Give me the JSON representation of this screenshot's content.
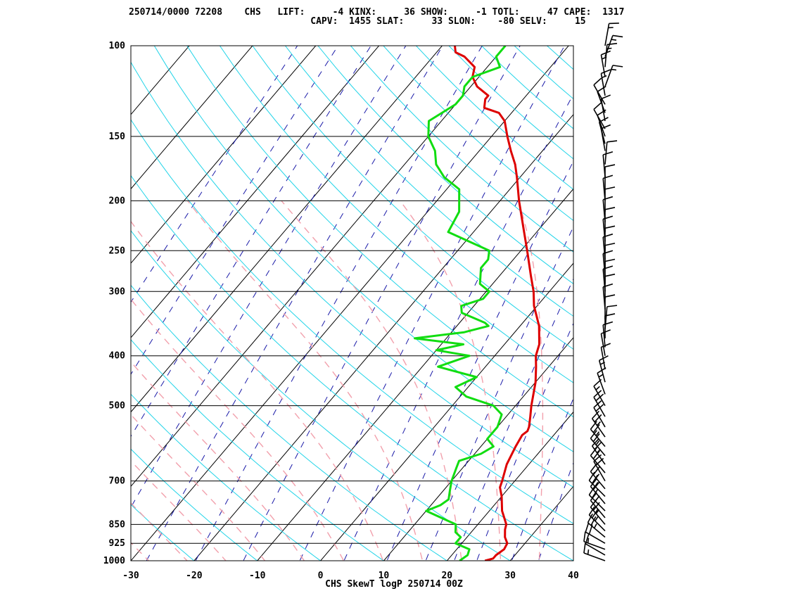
{
  "header": {
    "line1": "250714/0000 72208    CHS   LIFT:     -4 KINX:     36 SHOW:     -1 TOTL:     47 CAPE:  1317",
    "line2": "                                 CAPV:  1455 SLAT:     33 SLON:    -80 SELV:     15"
  },
  "chart_data": {
    "type": "line",
    "title": "CHS SkewT logP 250714 00Z",
    "xlabel": "",
    "ylabel": "",
    "xlim": [
      -30,
      40
    ],
    "ylim": [
      1000,
      100
    ],
    "y_scale": "log",
    "x_ticks": [
      -30,
      -20,
      -10,
      0,
      10,
      20,
      30,
      40
    ],
    "pressure_levels": [
      100,
      150,
      200,
      250,
      300,
      400,
      500,
      700,
      850,
      925,
      1000
    ],
    "series": [
      {
        "name": "",
        "color": "#dd0000",
        "points": [
          [
            1000,
            26
          ],
          [
            990,
            27
          ],
          [
            975,
            27
          ],
          [
            950,
            27.5
          ],
          [
            925,
            27.2
          ],
          [
            900,
            26
          ],
          [
            870,
            25
          ],
          [
            850,
            24.5
          ],
          [
            800,
            22
          ],
          [
            750,
            20
          ],
          [
            720,
            18.5
          ],
          [
            700,
            18
          ],
          [
            650,
            16.5
          ],
          [
            600,
            15.5
          ],
          [
            570,
            15
          ],
          [
            560,
            15.3
          ],
          [
            550,
            15
          ],
          [
            525,
            13.8
          ],
          [
            500,
            12.5
          ],
          [
            450,
            10
          ],
          [
            420,
            8
          ],
          [
            400,
            6.5
          ],
          [
            380,
            5.5
          ],
          [
            350,
            3
          ],
          [
            320,
            -0.5
          ],
          [
            300,
            -2.5
          ],
          [
            280,
            -5
          ],
          [
            250,
            -9
          ],
          [
            230,
            -12
          ],
          [
            200,
            -17
          ],
          [
            180,
            -20.5
          ],
          [
            170,
            -22.5
          ],
          [
            160,
            -25
          ],
          [
            150,
            -27.5
          ],
          [
            140,
            -30
          ],
          [
            135,
            -32
          ],
          [
            132,
            -35
          ],
          [
            127,
            -36
          ],
          [
            125,
            -36
          ],
          [
            120,
            -39
          ],
          [
            115,
            -41
          ],
          [
            110,
            -42
          ],
          [
            105,
            -45
          ],
          [
            103,
            -47
          ],
          [
            100,
            -48
          ]
        ]
      },
      {
        "name": "",
        "color": "#11dd11",
        "points": [
          [
            1000,
            22
          ],
          [
            975,
            22.5
          ],
          [
            950,
            22
          ],
          [
            925,
            19
          ],
          [
            900,
            19
          ],
          [
            880,
            17.5
          ],
          [
            850,
            16.5
          ],
          [
            800,
            10
          ],
          [
            780,
            11.5
          ],
          [
            760,
            12
          ],
          [
            730,
            11
          ],
          [
            700,
            10
          ],
          [
            660,
            9
          ],
          [
            640,
            8.5
          ],
          [
            620,
            11
          ],
          [
            600,
            12
          ],
          [
            580,
            10
          ],
          [
            550,
            10
          ],
          [
            520,
            9
          ],
          [
            500,
            6.5
          ],
          [
            480,
            1
          ],
          [
            460,
            -2
          ],
          [
            440,
            0
          ],
          [
            420,
            -7.5
          ],
          [
            400,
            -4
          ],
          [
            390,
            -10
          ],
          [
            380,
            -6.5
          ],
          [
            370,
            -15
          ],
          [
            360,
            -8
          ],
          [
            350,
            -5
          ],
          [
            345,
            -6
          ],
          [
            330,
            -11
          ],
          [
            320,
            -12
          ],
          [
            310,
            -9.5
          ],
          [
            300,
            -9.5
          ],
          [
            290,
            -12
          ],
          [
            270,
            -14
          ],
          [
            260,
            -14
          ],
          [
            250,
            -15
          ],
          [
            230,
            -24
          ],
          [
            210,
            -25
          ],
          [
            190,
            -28
          ],
          [
            180,
            -32
          ],
          [
            170,
            -35
          ],
          [
            160,
            -37
          ],
          [
            150,
            -40
          ],
          [
            140,
            -42
          ],
          [
            130,
            -40
          ],
          [
            125,
            -40
          ],
          [
            120,
            -41
          ],
          [
            115,
            -41
          ],
          [
            110,
            -38
          ],
          [
            105,
            -40
          ],
          [
            100,
            -40
          ]
        ]
      }
    ],
    "wind_barbs": [
      [
        1000,
        290,
        15
      ],
      [
        975,
        300,
        10
      ],
      [
        950,
        290,
        15
      ],
      [
        925,
        300,
        20
      ],
      [
        900,
        310,
        25
      ],
      [
        875,
        315,
        25
      ],
      [
        850,
        320,
        25
      ],
      [
        825,
        320,
        20
      ],
      [
        800,
        315,
        20
      ],
      [
        775,
        320,
        20
      ],
      [
        750,
        315,
        25
      ],
      [
        725,
        320,
        25
      ],
      [
        700,
        330,
        20
      ],
      [
        675,
        320,
        20
      ],
      [
        650,
        325,
        25
      ],
      [
        625,
        320,
        25
      ],
      [
        600,
        320,
        25
      ],
      [
        575,
        325,
        25
      ],
      [
        550,
        330,
        20
      ],
      [
        525,
        330,
        20
      ],
      [
        500,
        330,
        15
      ],
      [
        475,
        340,
        15
      ],
      [
        450,
        345,
        15
      ],
      [
        425,
        350,
        10
      ],
      [
        400,
        350,
        10
      ],
      [
        385,
        355,
        10
      ],
      [
        370,
        0,
        10
      ],
      [
        355,
        5,
        10
      ],
      [
        340,
        0,
        10
      ],
      [
        325,
        355,
        10
      ],
      [
        310,
        0,
        10
      ],
      [
        300,
        355,
        10
      ],
      [
        290,
        0,
        10
      ],
      [
        280,
        355,
        10
      ],
      [
        270,
        0,
        10
      ],
      [
        260,
        355,
        10
      ],
      [
        250,
        0,
        10
      ],
      [
        240,
        355,
        10
      ],
      [
        230,
        0,
        10
      ],
      [
        220,
        355,
        10
      ],
      [
        210,
        0,
        10
      ],
      [
        200,
        355,
        10
      ],
      [
        190,
        0,
        10
      ],
      [
        180,
        355,
        10
      ],
      [
        170,
        5,
        10
      ],
      [
        160,
        350,
        10
      ],
      [
        155,
        345,
        10
      ],
      [
        150,
        340,
        10
      ],
      [
        145,
        330,
        10
      ],
      [
        140,
        350,
        10
      ],
      [
        135,
        340,
        10
      ],
      [
        130,
        330,
        10
      ],
      [
        125,
        350,
        15
      ],
      [
        120,
        20,
        15
      ],
      [
        115,
        350,
        15
      ],
      [
        110,
        5,
        15
      ],
      [
        105,
        20,
        15
      ],
      [
        100,
        10,
        15
      ]
    ]
  }
}
